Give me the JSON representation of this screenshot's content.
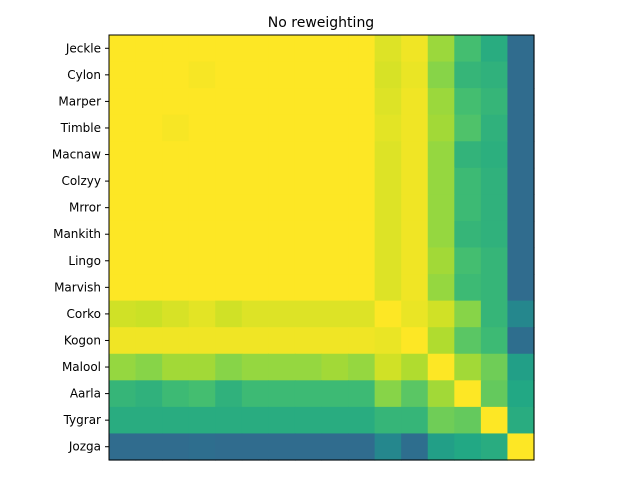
{
  "chart_data": {
    "type": "heatmap",
    "title": "No reweighting",
    "row_labels": [
      "Jeckle",
      "Cylon",
      "Marper",
      "Timble",
      "Macnaw",
      "Colzyy",
      "Mrror",
      "Mankith",
      "Lingo",
      "Marvish",
      "Corko",
      "Kogon",
      "Malool",
      "Aarla",
      "Tygrar",
      "Jozga"
    ],
    "col_labels": [],
    "colormap": "viridis",
    "value_range": [
      0,
      1
    ],
    "values": [
      [
        1.0,
        1.0,
        1.0,
        1.0,
        1.0,
        1.0,
        1.0,
        1.0,
        1.0,
        1.0,
        0.95,
        0.98,
        0.85,
        0.7,
        0.62,
        0.35
      ],
      [
        1.0,
        1.0,
        1.0,
        0.99,
        1.0,
        1.0,
        1.0,
        1.0,
        1.0,
        1.0,
        0.94,
        0.97,
        0.82,
        0.66,
        0.64,
        0.35
      ],
      [
        1.0,
        1.0,
        1.0,
        1.0,
        1.0,
        1.0,
        1.0,
        1.0,
        1.0,
        1.0,
        0.95,
        0.98,
        0.85,
        0.7,
        0.66,
        0.35
      ],
      [
        1.0,
        1.0,
        0.99,
        1.0,
        1.0,
        1.0,
        1.0,
        1.0,
        1.0,
        1.0,
        0.96,
        0.98,
        0.86,
        0.72,
        0.64,
        0.35
      ],
      [
        1.0,
        1.0,
        1.0,
        1.0,
        1.0,
        1.0,
        1.0,
        1.0,
        1.0,
        1.0,
        0.95,
        0.98,
        0.84,
        0.65,
        0.63,
        0.35
      ],
      [
        1.0,
        1.0,
        1.0,
        1.0,
        1.0,
        1.0,
        1.0,
        1.0,
        1.0,
        1.0,
        0.95,
        0.98,
        0.84,
        0.68,
        0.64,
        0.35
      ],
      [
        1.0,
        1.0,
        1.0,
        1.0,
        1.0,
        1.0,
        1.0,
        1.0,
        1.0,
        1.0,
        0.95,
        0.98,
        0.84,
        0.68,
        0.64,
        0.35
      ],
      [
        1.0,
        1.0,
        1.0,
        1.0,
        1.0,
        1.0,
        1.0,
        1.0,
        1.0,
        1.0,
        0.95,
        0.98,
        0.84,
        0.66,
        0.64,
        0.35
      ],
      [
        1.0,
        1.0,
        1.0,
        1.0,
        1.0,
        1.0,
        1.0,
        1.0,
        1.0,
        1.0,
        0.95,
        0.98,
        0.86,
        0.7,
        0.66,
        0.35
      ],
      [
        1.0,
        1.0,
        1.0,
        1.0,
        1.0,
        1.0,
        1.0,
        1.0,
        1.0,
        1.0,
        0.95,
        0.98,
        0.84,
        0.68,
        0.66,
        0.35
      ],
      [
        0.93,
        0.92,
        0.94,
        0.96,
        0.93,
        0.95,
        0.95,
        0.95,
        0.95,
        0.95,
        1.0,
        0.97,
        0.93,
        0.82,
        0.66,
        0.46
      ],
      [
        0.98,
        0.98,
        0.98,
        0.98,
        0.98,
        0.98,
        0.98,
        0.98,
        0.98,
        0.98,
        0.97,
        1.0,
        0.88,
        0.74,
        0.68,
        0.36
      ],
      [
        0.84,
        0.82,
        0.86,
        0.86,
        0.82,
        0.84,
        0.84,
        0.84,
        0.86,
        0.84,
        0.93,
        0.88,
        1.0,
        0.86,
        0.78,
        0.56
      ],
      [
        0.66,
        0.64,
        0.68,
        0.7,
        0.64,
        0.68,
        0.68,
        0.68,
        0.68,
        0.68,
        0.82,
        0.74,
        0.86,
        1.0,
        0.76,
        0.6
      ],
      [
        0.62,
        0.62,
        0.62,
        0.62,
        0.62,
        0.62,
        0.62,
        0.62,
        0.62,
        0.62,
        0.66,
        0.66,
        0.78,
        0.76,
        1.0,
        0.62
      ],
      [
        0.35,
        0.35,
        0.35,
        0.36,
        0.35,
        0.35,
        0.35,
        0.35,
        0.35,
        0.35,
        0.46,
        0.36,
        0.56,
        0.6,
        0.62,
        1.0
      ]
    ]
  }
}
